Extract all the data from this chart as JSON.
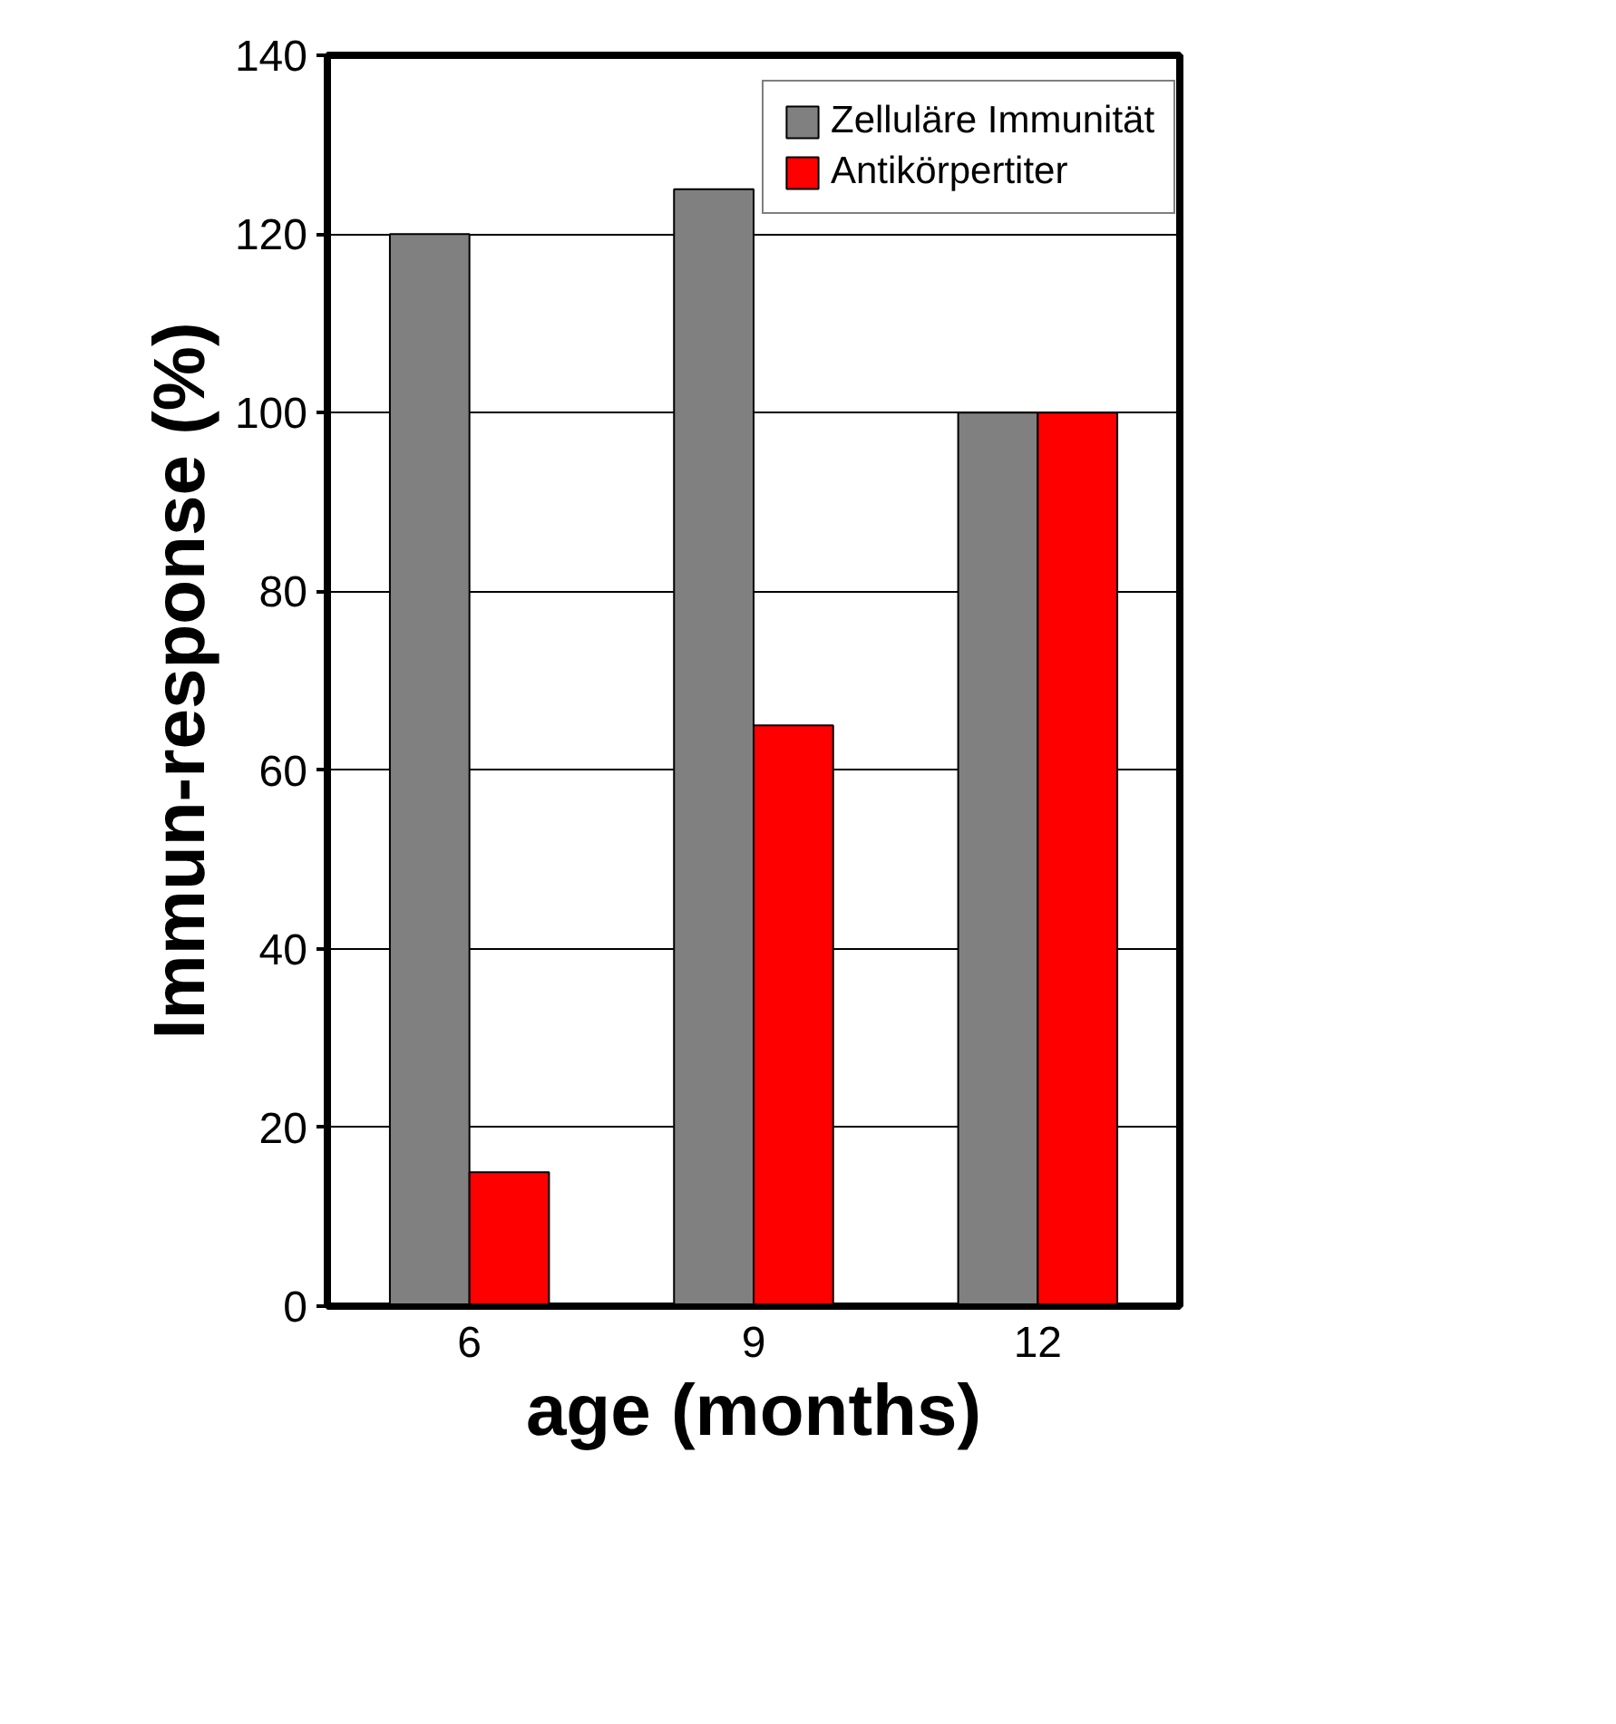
{
  "chart_data": {
    "type": "bar",
    "xlabel": "age (months)",
    "ylabel": "Immun-response (%)",
    "categories": [
      "6",
      "9",
      "12"
    ],
    "series": [
      {
        "name": "Zelluläre Immunität",
        "color": "#808080",
        "values": [
          120,
          125,
          100
        ]
      },
      {
        "name": "Antikörpertiter",
        "color": "#ff0000",
        "values": [
          15,
          65,
          100
        ]
      }
    ],
    "ylim": [
      0,
      140
    ],
    "yticks": [
      0,
      20,
      40,
      60,
      80,
      100,
      120,
      140
    ],
    "grid": "y",
    "legend": "top right"
  }
}
